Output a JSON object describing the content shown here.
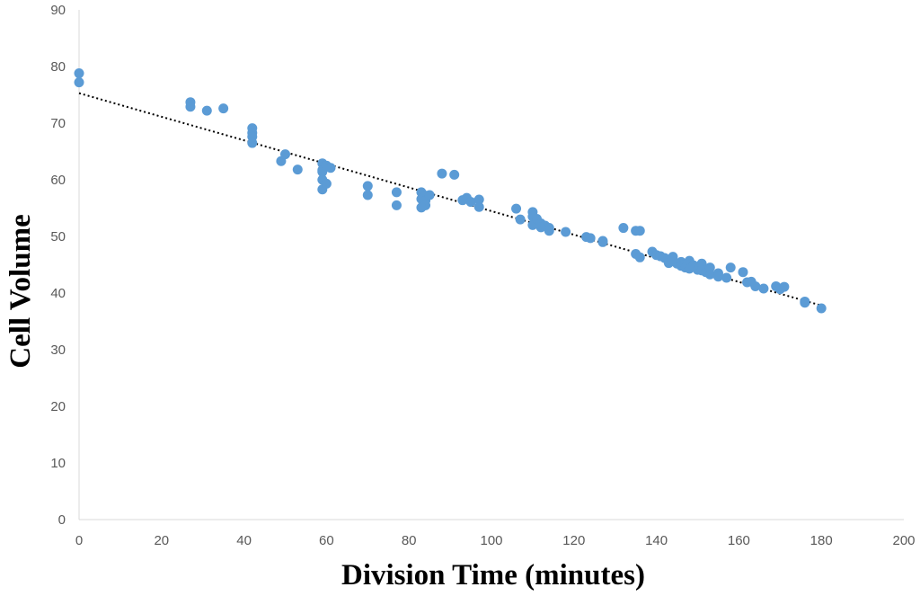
{
  "chart_data": {
    "type": "scatter",
    "title": "",
    "xlabel": "Division Time (minutes)",
    "ylabel": "Cell Volume",
    "xlim": [
      0,
      200
    ],
    "ylim": [
      0,
      90
    ],
    "x_ticks": [
      "0",
      "20",
      "40",
      "60",
      "80",
      "100",
      "120",
      "140",
      "160",
      "180",
      "200"
    ],
    "y_ticks": [
      "0",
      "10",
      "20",
      "30",
      "40",
      "50",
      "60",
      "70",
      "80",
      "90"
    ],
    "grid": false,
    "legend": "none",
    "colors": {
      "points": "#5b9bd5",
      "trendline": "#000000",
      "axis": "#d9d9d9"
    },
    "series": [
      {
        "points": [
          [
            0,
            78.8
          ],
          [
            0,
            77.2
          ],
          [
            27,
            73.7
          ],
          [
            27,
            72.9
          ],
          [
            31,
            72.2
          ],
          [
            35,
            72.6
          ],
          [
            42,
            69.1
          ],
          [
            42,
            68.3
          ],
          [
            42,
            67.6
          ],
          [
            42,
            66.5
          ],
          [
            49,
            63.3
          ],
          [
            50,
            64.5
          ],
          [
            53,
            61.8
          ],
          [
            59,
            62.9
          ],
          [
            59,
            61.7
          ],
          [
            59,
            61.4
          ],
          [
            60,
            62.5
          ],
          [
            61,
            62.1
          ],
          [
            59,
            60.0
          ],
          [
            59,
            58.3
          ],
          [
            60,
            59.3
          ],
          [
            70,
            58.9
          ],
          [
            70,
            57.3
          ],
          [
            77,
            57.8
          ],
          [
            77,
            55.5
          ],
          [
            83,
            57.8
          ],
          [
            84,
            57.2
          ],
          [
            83,
            56.6
          ],
          [
            84,
            56.3
          ],
          [
            85,
            57.3
          ],
          [
            84,
            55.5
          ],
          [
            83,
            55.1
          ],
          [
            88,
            61.1
          ],
          [
            91,
            60.9
          ],
          [
            93,
            56.4
          ],
          [
            94,
            56.8
          ],
          [
            95,
            56.1
          ],
          [
            97,
            56.5
          ],
          [
            97,
            55.2
          ],
          [
            106,
            54.9
          ],
          [
            107,
            53.0
          ],
          [
            110,
            54.3
          ],
          [
            110,
            53.5
          ],
          [
            110,
            52.0
          ],
          [
            111,
            53.1
          ],
          [
            112,
            52.3
          ],
          [
            112,
            51.6
          ],
          [
            113,
            51.9
          ],
          [
            114,
            51.5
          ],
          [
            114,
            51.0
          ],
          [
            118,
            50.8
          ],
          [
            123,
            49.9
          ],
          [
            124,
            49.7
          ],
          [
            127,
            49.2
          ],
          [
            127,
            49.0
          ],
          [
            132,
            51.5
          ],
          [
            135,
            51.0
          ],
          [
            136,
            51.0
          ],
          [
            135,
            46.9
          ],
          [
            136,
            46.3
          ],
          [
            139,
            47.3
          ],
          [
            140,
            46.7
          ],
          [
            141,
            46.5
          ],
          [
            142,
            46.2
          ],
          [
            143,
            45.3
          ],
          [
            144,
            46.4
          ],
          [
            144,
            45.7
          ],
          [
            145,
            45.2
          ],
          [
            146,
            45.5
          ],
          [
            146,
            44.8
          ],
          [
            147,
            45.0
          ],
          [
            147,
            44.5
          ],
          [
            148,
            45.7
          ],
          [
            148,
            44.3
          ],
          [
            149,
            44.9
          ],
          [
            150,
            44.1
          ],
          [
            151,
            45.2
          ],
          [
            151,
            44.0
          ],
          [
            152,
            43.7
          ],
          [
            153,
            44.5
          ],
          [
            153,
            43.3
          ],
          [
            155,
            43.5
          ],
          [
            155,
            42.9
          ],
          [
            157,
            42.7
          ],
          [
            158,
            44.5
          ],
          [
            161,
            43.7
          ],
          [
            162,
            41.9
          ],
          [
            163,
            42.0
          ],
          [
            164,
            41.2
          ],
          [
            166,
            40.8
          ],
          [
            169,
            41.2
          ],
          [
            170,
            40.7
          ],
          [
            171,
            41.1
          ],
          [
            176,
            38.5
          ],
          [
            176,
            38.3
          ],
          [
            180,
            37.3
          ]
        ]
      }
    ],
    "trendline": {
      "style": "dotted",
      "from": [
        0,
        75.3
      ],
      "to": [
        180,
        37.8
      ]
    }
  }
}
